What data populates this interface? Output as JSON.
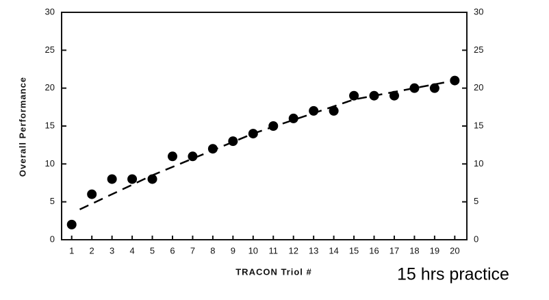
{
  "chart_data": {
    "type": "scatter",
    "x_label": "TRACON Triol #",
    "y_label": "Overall Performance",
    "annotation": "15 hrs practice",
    "x": [
      1,
      2,
      3,
      4,
      5,
      6,
      7,
      8,
      9,
      10,
      11,
      12,
      13,
      14,
      15,
      16,
      17,
      18,
      19,
      20
    ],
    "series": [
      {
        "color": "#000000",
        "values": [
          2,
          6,
          8,
          8,
          8,
          11,
          11,
          12,
          13,
          14,
          15,
          16,
          17,
          17,
          19,
          19,
          19,
          20,
          20,
          21
        ]
      },
      {
        "color": "#000000",
        "line": "dashed",
        "x": [
          1.4,
          5,
          10,
          15,
          20
        ],
        "values": [
          4,
          8.5,
          14,
          18.5,
          21
        ]
      }
    ],
    "xlim": [
      0.5,
      20.6
    ],
    "xticks": [
      1,
      2,
      3,
      4,
      5,
      6,
      7,
      8,
      9,
      10,
      11,
      12,
      13,
      14,
      15,
      16,
      17,
      18,
      19,
      20
    ],
    "ylim": [
      0,
      30
    ],
    "yticks": [
      0,
      5,
      10,
      15,
      20,
      25,
      30
    ],
    "y2lim": [
      0,
      30
    ],
    "y2ticks": [
      0,
      5,
      10,
      15,
      20,
      25,
      30
    ]
  }
}
